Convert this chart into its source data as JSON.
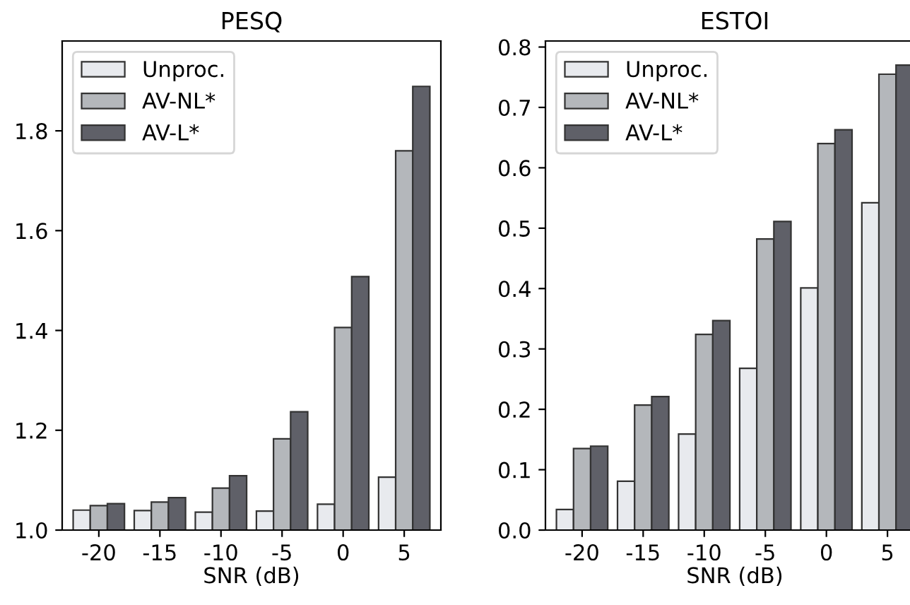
{
  "chart_data": [
    {
      "type": "bar",
      "title": "PESQ",
      "xlabel": "SNR (dB)",
      "categories": [
        "-20",
        "-15",
        "-10",
        "-5",
        "0",
        "5"
      ],
      "ylim": [
        1.0,
        1.98
      ],
      "yticks": [
        {
          "value": 1.0,
          "label": "1.0"
        },
        {
          "value": 1.2,
          "label": "1.2"
        },
        {
          "value": 1.4,
          "label": "1.4"
        },
        {
          "value": 1.6,
          "label": "1.6"
        },
        {
          "value": 1.8,
          "label": "1.8"
        }
      ],
      "legend": "top left",
      "grid": false,
      "series": [
        {
          "name": "Unproc.",
          "color": "#e8eaee",
          "values": [
            1.04,
            1.039,
            1.036,
            1.038,
            1.052,
            1.106
          ]
        },
        {
          "name": "AV-NL*",
          "color": "#b4b7bb",
          "values": [
            1.049,
            1.056,
            1.084,
            1.183,
            1.406,
            1.76
          ]
        },
        {
          "name": "AV-L*",
          "color": "#5f6068",
          "values": [
            1.053,
            1.065,
            1.109,
            1.237,
            1.508,
            1.889
          ]
        }
      ]
    },
    {
      "type": "bar",
      "title": "ESTOI",
      "xlabel": "SNR (dB)",
      "categories": [
        "-20",
        "-15",
        "-10",
        "-5",
        "0",
        "5"
      ],
      "ylim": [
        0.0,
        0.81
      ],
      "yticks": [
        {
          "value": 0.0,
          "label": "0.0"
        },
        {
          "value": 0.1,
          "label": "0.1"
        },
        {
          "value": 0.2,
          "label": "0.2"
        },
        {
          "value": 0.3,
          "label": "0.3"
        },
        {
          "value": 0.4,
          "label": "0.4"
        },
        {
          "value": 0.5,
          "label": "0.5"
        },
        {
          "value": 0.6,
          "label": "0.6"
        },
        {
          "value": 0.7,
          "label": "0.7"
        },
        {
          "value": 0.8,
          "label": "0.8"
        }
      ],
      "legend": "top left",
      "grid": false,
      "series": [
        {
          "name": "Unproc.",
          "color": "#e8eaee",
          "values": [
            0.034,
            0.081,
            0.159,
            0.268,
            0.401,
            0.542
          ]
        },
        {
          "name": "AV-NL*",
          "color": "#b4b7bb",
          "values": [
            0.135,
            0.207,
            0.324,
            0.482,
            0.64,
            0.755
          ]
        },
        {
          "name": "AV-L*",
          "color": "#5f6068",
          "values": [
            0.139,
            0.221,
            0.347,
            0.511,
            0.663,
            0.77
          ]
        }
      ]
    }
  ]
}
